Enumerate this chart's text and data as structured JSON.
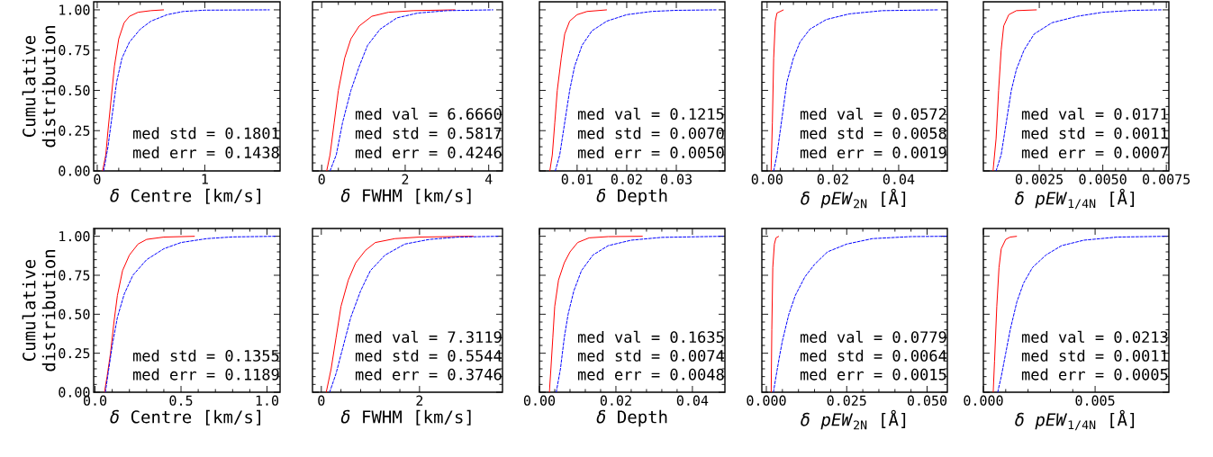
{
  "chart_data": [
    {
      "type": "line",
      "xlabel": "*δ* Centre [km/s]",
      "ylabel": "Cumulative distribution",
      "xlim": [
        -0.033,
        1.7
      ],
      "ylim": [
        0,
        1.05
      ],
      "xticks": [
        0,
        1
      ],
      "yticks": [
        {
          "value": 0,
          "label": "0.00"
        },
        0.25,
        {
          "value": 0.5,
          "label": "0.50"
        },
        0.75,
        {
          "value": 1,
          "label": "1.00"
        }
      ],
      "series": [
        {
          "color": "#ff0000",
          "line_style": "solid",
          "x": [
            0.05,
            0.08,
            0.1,
            0.13,
            0.16,
            0.2,
            0.25,
            0.3,
            0.38,
            0.5,
            0.62
          ],
          "values": [
            0,
            0.1,
            0.25,
            0.45,
            0.65,
            0.82,
            0.92,
            0.96,
            0.985,
            0.995,
            1.0
          ]
        },
        {
          "color": "#0000ff",
          "line_style": "dashed",
          "x": [
            0.06,
            0.1,
            0.14,
            0.18,
            0.23,
            0.3,
            0.4,
            0.5,
            0.65,
            0.8,
            1.0,
            1.6
          ],
          "values": [
            0,
            0.15,
            0.35,
            0.55,
            0.7,
            0.8,
            0.88,
            0.93,
            0.97,
            0.99,
            0.998,
            1.0
          ]
        }
      ],
      "annotations": [
        "med std = 0.1801",
        "med err = 0.1438"
      ]
    },
    {
      "type": "line",
      "xlabel": "*δ* FWHM [km/s]",
      "xlim": [
        -0.22,
        4.33
      ],
      "ylim": [
        0,
        1.05
      ],
      "xticks": [
        0,
        2,
        4
      ],
      "yticks": [
        0,
        0.25,
        0.5,
        0.75,
        1
      ],
      "tick_labels": "x",
      "series": [
        {
          "color": "#ff0000",
          "line_style": "solid",
          "x": [
            0.12,
            0.2,
            0.3,
            0.4,
            0.55,
            0.7,
            0.9,
            1.2,
            1.6,
            2.2,
            3.2
          ],
          "values": [
            0,
            0.1,
            0.3,
            0.5,
            0.7,
            0.82,
            0.9,
            0.96,
            0.985,
            0.995,
            1.0
          ]
        },
        {
          "color": "#0000ff",
          "line_style": "dashed",
          "x": [
            0.2,
            0.35,
            0.5,
            0.7,
            0.9,
            1.1,
            1.4,
            1.8,
            2.3,
            3.0,
            4.1
          ],
          "values": [
            0,
            0.1,
            0.3,
            0.5,
            0.65,
            0.78,
            0.88,
            0.95,
            0.98,
            0.995,
            1.0
          ]
        }
      ],
      "annotations": [
        "med val = 6.6660",
        "med std = 0.5817",
        "med err = 0.4246"
      ]
    },
    {
      "type": "line",
      "xlabel": "*δ* Depth",
      "xlim": [
        0.0024,
        0.0398
      ],
      "ylim": [
        0,
        1.05
      ],
      "xticks": [
        0.01,
        0.02,
        0.03
      ],
      "yticks": [
        0,
        0.25,
        0.5,
        0.75,
        1
      ],
      "tick_labels": "x",
      "series": [
        {
          "color": "#ff0000",
          "line_style": "solid",
          "x": [
            0.0045,
            0.005,
            0.0055,
            0.006,
            0.0068,
            0.0075,
            0.0085,
            0.01,
            0.012,
            0.016
          ],
          "values": [
            0,
            0.1,
            0.3,
            0.5,
            0.7,
            0.85,
            0.93,
            0.97,
            0.99,
            1.0
          ]
        },
        {
          "color": "#0000ff",
          "line_style": "dashed",
          "x": [
            0.0056,
            0.0065,
            0.0075,
            0.0085,
            0.0095,
            0.011,
            0.013,
            0.016,
            0.02,
            0.025,
            0.03,
            0.038
          ],
          "values": [
            0,
            0.1,
            0.3,
            0.5,
            0.65,
            0.78,
            0.87,
            0.93,
            0.97,
            0.99,
            0.997,
            1.0
          ]
        }
      ],
      "annotations": [
        "med val = 0.1215",
        "med std = 0.0070",
        "med err = 0.0050"
      ]
    },
    {
      "type": "line",
      "xlabel": "*δ pEW*$_{2N}$ [Å]",
      "xlim": [
        -0.0016,
        0.0548
      ],
      "ylim": [
        0,
        1.05
      ],
      "xticks": [
        {
          "value": 0,
          "label": "0.00"
        },
        0.02,
        0.04
      ],
      "yticks": [
        0,
        0.25,
        0.5,
        0.75,
        1
      ],
      "tick_labels": "x",
      "series": [
        {
          "color": "#ff0000",
          "line_style": "solid",
          "x": [
            0.0012,
            0.0016,
            0.002,
            0.0025,
            0.003,
            0.005
          ],
          "values": [
            0,
            0.3,
            0.7,
            0.93,
            0.98,
            1.0
          ]
        },
        {
          "color": "#0000ff",
          "line_style": "dashed",
          "x": [
            0.002,
            0.003,
            0.004,
            0.005,
            0.006,
            0.008,
            0.01,
            0.013,
            0.018,
            0.025,
            0.035,
            0.052
          ],
          "values": [
            0,
            0.1,
            0.25,
            0.4,
            0.55,
            0.7,
            0.8,
            0.88,
            0.94,
            0.975,
            0.995,
            1.0
          ]
        }
      ],
      "annotations": [
        "med val = 0.0572",
        "med std = 0.0058",
        "med err = 0.0019"
      ]
    },
    {
      "type": "line",
      "xlabel": "*δ pEW*$_{1/4N}$ [Å]",
      "xlim": [
        0.0003,
        0.0076
      ],
      "ylim": [
        0,
        1.05
      ],
      "xticks": [
        {
          "value": 0.0025,
          "label": "0.0025"
        },
        {
          "value": 0.005,
          "label": "0.0050"
        },
        {
          "value": 0.0075,
          "label": "0.0075"
        }
      ],
      "yticks": [
        0,
        0.25,
        0.5,
        0.75,
        1
      ],
      "tick_labels": "x",
      "series": [
        {
          "color": "#ff0000",
          "line_style": "solid",
          "x": [
            0.00068,
            0.0008,
            0.0009,
            0.001,
            0.0011,
            0.0013,
            0.0016,
            0.0024
          ],
          "values": [
            0,
            0.2,
            0.5,
            0.75,
            0.9,
            0.97,
            0.995,
            1.0
          ]
        },
        {
          "color": "#0000ff",
          "line_style": "dashed",
          "x": [
            0.0008,
            0.001,
            0.0012,
            0.0014,
            0.0016,
            0.0019,
            0.0023,
            0.003,
            0.004,
            0.005,
            0.0062,
            0.0073
          ],
          "values": [
            0,
            0.1,
            0.3,
            0.5,
            0.63,
            0.75,
            0.85,
            0.92,
            0.96,
            0.985,
            0.997,
            1.0
          ]
        }
      ],
      "annotations": [
        "med val = 0.0171",
        "med std = 0.0011",
        "med err = 0.0007"
      ]
    },
    {
      "type": "line",
      "xlabel": "*δ* Centre [km/s]",
      "ylabel": "Cumulative distribution",
      "xlim": [
        -0.008,
        1.076
      ],
      "ylim": [
        0,
        1.05
      ],
      "xticks": [
        {
          "value": 0,
          "label": "0.0"
        },
        0.5,
        {
          "value": 1,
          "label": "1.0"
        }
      ],
      "yticks": [
        {
          "value": 0,
          "label": "0.00"
        },
        0.25,
        {
          "value": 0.5,
          "label": "0.50"
        },
        0.75,
        {
          "value": 1,
          "label": "1.00"
        }
      ],
      "series": [
        {
          "color": "#ff0000",
          "line_style": "solid",
          "x": [
            0.055,
            0.07,
            0.09,
            0.11,
            0.13,
            0.16,
            0.2,
            0.25,
            0.3,
            0.4,
            0.58
          ],
          "values": [
            0,
            0.1,
            0.25,
            0.45,
            0.62,
            0.78,
            0.88,
            0.95,
            0.98,
            0.995,
            1.0
          ]
        },
        {
          "color": "#0000ff",
          "line_style": "dashed",
          "x": [
            0.06,
            0.08,
            0.1,
            0.13,
            0.17,
            0.22,
            0.3,
            0.4,
            0.5,
            0.65,
            0.8,
            1.05
          ],
          "values": [
            0,
            0.15,
            0.3,
            0.48,
            0.63,
            0.75,
            0.85,
            0.92,
            0.96,
            0.985,
            0.996,
            1.0
          ]
        }
      ],
      "annotations": [
        "med std = 0.1355",
        "med err = 0.1189"
      ]
    },
    {
      "type": "line",
      "xlabel": "*δ* FWHM [km/s]",
      "xlim": [
        -0.18,
        3.69
      ],
      "ylim": [
        0,
        1.05
      ],
      "xticks": [
        0,
        2
      ],
      "yticks": [
        0,
        0.25,
        0.5,
        0.75,
        1
      ],
      "tick_labels": "x",
      "series": [
        {
          "color": "#ff0000",
          "line_style": "solid",
          "x": [
            0.1,
            0.2,
            0.3,
            0.4,
            0.55,
            0.7,
            0.9,
            1.1,
            1.5,
            2.0,
            3.1
          ],
          "values": [
            0,
            0.15,
            0.35,
            0.55,
            0.72,
            0.83,
            0.91,
            0.96,
            0.985,
            0.995,
            1.0
          ]
        },
        {
          "color": "#0000ff",
          "line_style": "dashed",
          "x": [
            0.17,
            0.3,
            0.45,
            0.6,
            0.8,
            1.0,
            1.3,
            1.7,
            2.2,
            2.8,
            3.6
          ],
          "values": [
            0,
            0.12,
            0.3,
            0.48,
            0.65,
            0.78,
            0.88,
            0.95,
            0.98,
            0.995,
            1.0
          ]
        }
      ],
      "annotations": [
        "med val = 7.3119",
        "med std = 0.5544",
        "med err = 0.3746"
      ]
    },
    {
      "type": "line",
      "xlabel": "*δ* Depth",
      "xlim": [
        0,
        0.0485
      ],
      "ylim": [
        0,
        1.05
      ],
      "xticks": [
        {
          "value": 0,
          "label": "0.00"
        },
        0.02,
        0.04
      ],
      "yticks": [
        0,
        0.25,
        0.5,
        0.75,
        1
      ],
      "tick_labels": "x",
      "series": [
        {
          "color": "#ff0000",
          "line_style": "solid",
          "x": [
            0.0026,
            0.003,
            0.0035,
            0.004,
            0.005,
            0.0065,
            0.008,
            0.01,
            0.013,
            0.018,
            0.027
          ],
          "values": [
            0,
            0.15,
            0.35,
            0.55,
            0.72,
            0.83,
            0.9,
            0.96,
            0.99,
            0.998,
            1.0
          ]
        },
        {
          "color": "#0000ff",
          "line_style": "dashed",
          "x": [
            0.0044,
            0.0055,
            0.0065,
            0.0075,
            0.009,
            0.011,
            0.014,
            0.018,
            0.024,
            0.032,
            0.048
          ],
          "values": [
            0,
            0.15,
            0.35,
            0.5,
            0.65,
            0.78,
            0.88,
            0.94,
            0.975,
            0.993,
            1.0
          ]
        }
      ],
      "annotations": [
        "med val = 0.1635",
        "med std = 0.0074",
        "med err = 0.0048"
      ]
    },
    {
      "type": "line",
      "xlabel": "*δ pEW*$_{2N}$ [Å]",
      "xlim": [
        -0.0014,
        0.0563
      ],
      "ylim": [
        0,
        1.05
      ],
      "xticks": [
        {
          "value": 0,
          "label": "0.000"
        },
        0.025,
        {
          "value": 0.05,
          "label": "0.050"
        }
      ],
      "yticks": [
        0,
        0.25,
        0.5,
        0.75,
        1
      ],
      "tick_labels": "x",
      "series": [
        {
          "color": "#ff0000",
          "line_style": "solid",
          "x": [
            0.0015,
            0.0017,
            0.002,
            0.0025,
            0.003,
            0.0039
          ],
          "values": [
            0,
            0.4,
            0.8,
            0.95,
            0.99,
            1.0
          ]
        },
        {
          "color": "#0000ff",
          "line_style": "dashed",
          "x": [
            0.0022,
            0.003,
            0.004,
            0.005,
            0.007,
            0.009,
            0.012,
            0.015,
            0.019,
            0.025,
            0.033,
            0.045,
            0.056
          ],
          "values": [
            0,
            0.1,
            0.22,
            0.33,
            0.5,
            0.62,
            0.74,
            0.82,
            0.9,
            0.95,
            0.985,
            0.998,
            1.0
          ]
        }
      ],
      "annotations": [
        "med val = 0.0779",
        "med std = 0.0064",
        "med err = 0.0015"
      ]
    },
    {
      "type": "line",
      "xlabel": "*δ pEW*$_{1/4N}$ [Å]",
      "xlim": [
        0,
        0.0083
      ],
      "ylim": [
        0,
        1.05
      ],
      "xticks": [
        {
          "value": 0,
          "label": "0.000"
        },
        0.005
      ],
      "yticks": [
        0,
        0.25,
        0.5,
        0.75,
        1
      ],
      "tick_labels": "x",
      "series": [
        {
          "color": "#ff0000",
          "line_style": "solid",
          "x": [
            0.00044,
            0.0005,
            0.0006,
            0.0007,
            0.0008,
            0.001,
            0.0012,
            0.0015
          ],
          "values": [
            0,
            0.2,
            0.55,
            0.8,
            0.92,
            0.98,
            0.995,
            1.0
          ]
        },
        {
          "color": "#0000ff",
          "line_style": "dashed",
          "x": [
            0.00064,
            0.0008,
            0.001,
            0.0012,
            0.0015,
            0.0018,
            0.0022,
            0.0028,
            0.0035,
            0.0045,
            0.006,
            0.0082
          ],
          "values": [
            0,
            0.1,
            0.25,
            0.4,
            0.58,
            0.7,
            0.8,
            0.88,
            0.94,
            0.975,
            0.995,
            1.0
          ]
        }
      ],
      "annotations": [
        "med val = 0.0213",
        "med std = 0.0011",
        "med err = 0.0005"
      ]
    }
  ]
}
